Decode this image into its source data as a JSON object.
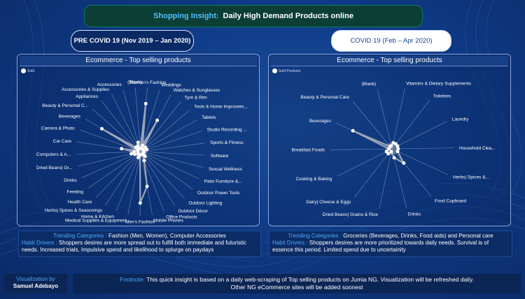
{
  "header": {
    "title_accent": "Shopping Insight:",
    "title_main": "Daily High Demand Products online"
  },
  "periods": {
    "pre": "PRE COVID 19 (Nov 2019 – Jan 2020)",
    "covid": "COVID 19 (Feb – Apr 2020)"
  },
  "chart_data": [
    {
      "type": "radar",
      "title": "Ecommerce - Top selling products",
      "legend": "Sold",
      "categories": [
        "Women's Fashion",
        "Weddings",
        "Watches & Sunglasses",
        "Tyre & Rim",
        "Tools & Home Improvem...",
        "Tablets",
        "Studio Recording ...",
        "Sports & Fitness",
        "Software",
        "Sexual Wellness",
        "Patio Furniture &...",
        "Outdoor Power Tools",
        "Outdoor Lighting",
        "Outdoor Décor",
        "Office Products",
        "Mobile Phones",
        "Men's Fashion",
        "Medical Supplies & Equipment",
        "Home & Kitchen",
        "Herbs| Spices & Seasonings",
        "Health Care",
        "Feeding",
        "Drinks",
        "Dried Beans| Gr...",
        "Computers & A...",
        "Car Care",
        "Camera & Photo",
        "Beverages",
        "Beauty & Personal C...",
        "Appliances",
        "Accessories & Supplies",
        "Accessories",
        "(Blank)"
      ],
      "values": [
        0.75,
        0.1,
        0.55,
        0.05,
        0.1,
        0.05,
        0.1,
        0.05,
        0.05,
        0.05,
        0.05,
        0.05,
        0.1,
        0.05,
        0.15,
        0.55,
        0.8,
        0.05,
        0.1,
        0.05,
        0.05,
        0.05,
        0.1,
        0.15,
        0.1,
        0.3,
        0.05,
        0.7,
        0.1,
        0.05,
        0.1,
        0.15,
        0.05
      ]
    },
    {
      "type": "radar",
      "title": "Ecommerce - Top selling products",
      "legend": "Sold Products",
      "categories": [
        "Vitamins & Dietary Supplements",
        "Toiletries",
        "Laundry",
        "Household Clea...",
        "Herbs| Spices &...",
        "Food Cupboard",
        "Drinks",
        "Dried Beans| Grains & Rice",
        "Dairy| Cheese & Eggs",
        "Cooking & Baking",
        "Breakfast Foods",
        "Beverages",
        "Beauty & Personal Care",
        "(Blank)"
      ],
      "values": [
        0.1,
        0.1,
        0.1,
        0.1,
        0.1,
        0.3,
        0.15,
        0.05,
        0.1,
        0.1,
        0.05,
        0.7,
        0.05,
        0.05
      ]
    }
  ],
  "notes": {
    "left": {
      "trend_label": "Trending Categories :",
      "trend_value": "Fashion (Men, Women), Computer Accessories",
      "habit_label": "Habit Drivers :",
      "habit_value": "Shoppers desires are more spread out to fulfill both immediate and futuristic needs. Increased trials, Impulsive spend and likelihood to splurge  on paydays"
    },
    "right": {
      "trend_label": "Trending Categories :",
      "trend_value": "Groceries  (Beverages, Drinks, Food aids) and Personal care",
      "habit_label": "Habit Drivers :",
      "habit_value": "Shoppers desires are more prioritized towards daily needs. Survival is of essence this period. Limited spend due to uncertainity"
    }
  },
  "footer": {
    "viz_label": "Visualization by",
    "viz_name": "Samuel Adebayo",
    "foot_label": "Footnote:",
    "foot_text": "This quick insight  is based on a daily web-scraping of Top selling products on Jumia NG. Visualization will be refreshed daily.",
    "foot_text2": "Other NG eCommerce sites will be added soonest"
  },
  "colors": {
    "accent": "#4fa8ff",
    "line": "#9aa3b8",
    "point": "#ffffff"
  }
}
